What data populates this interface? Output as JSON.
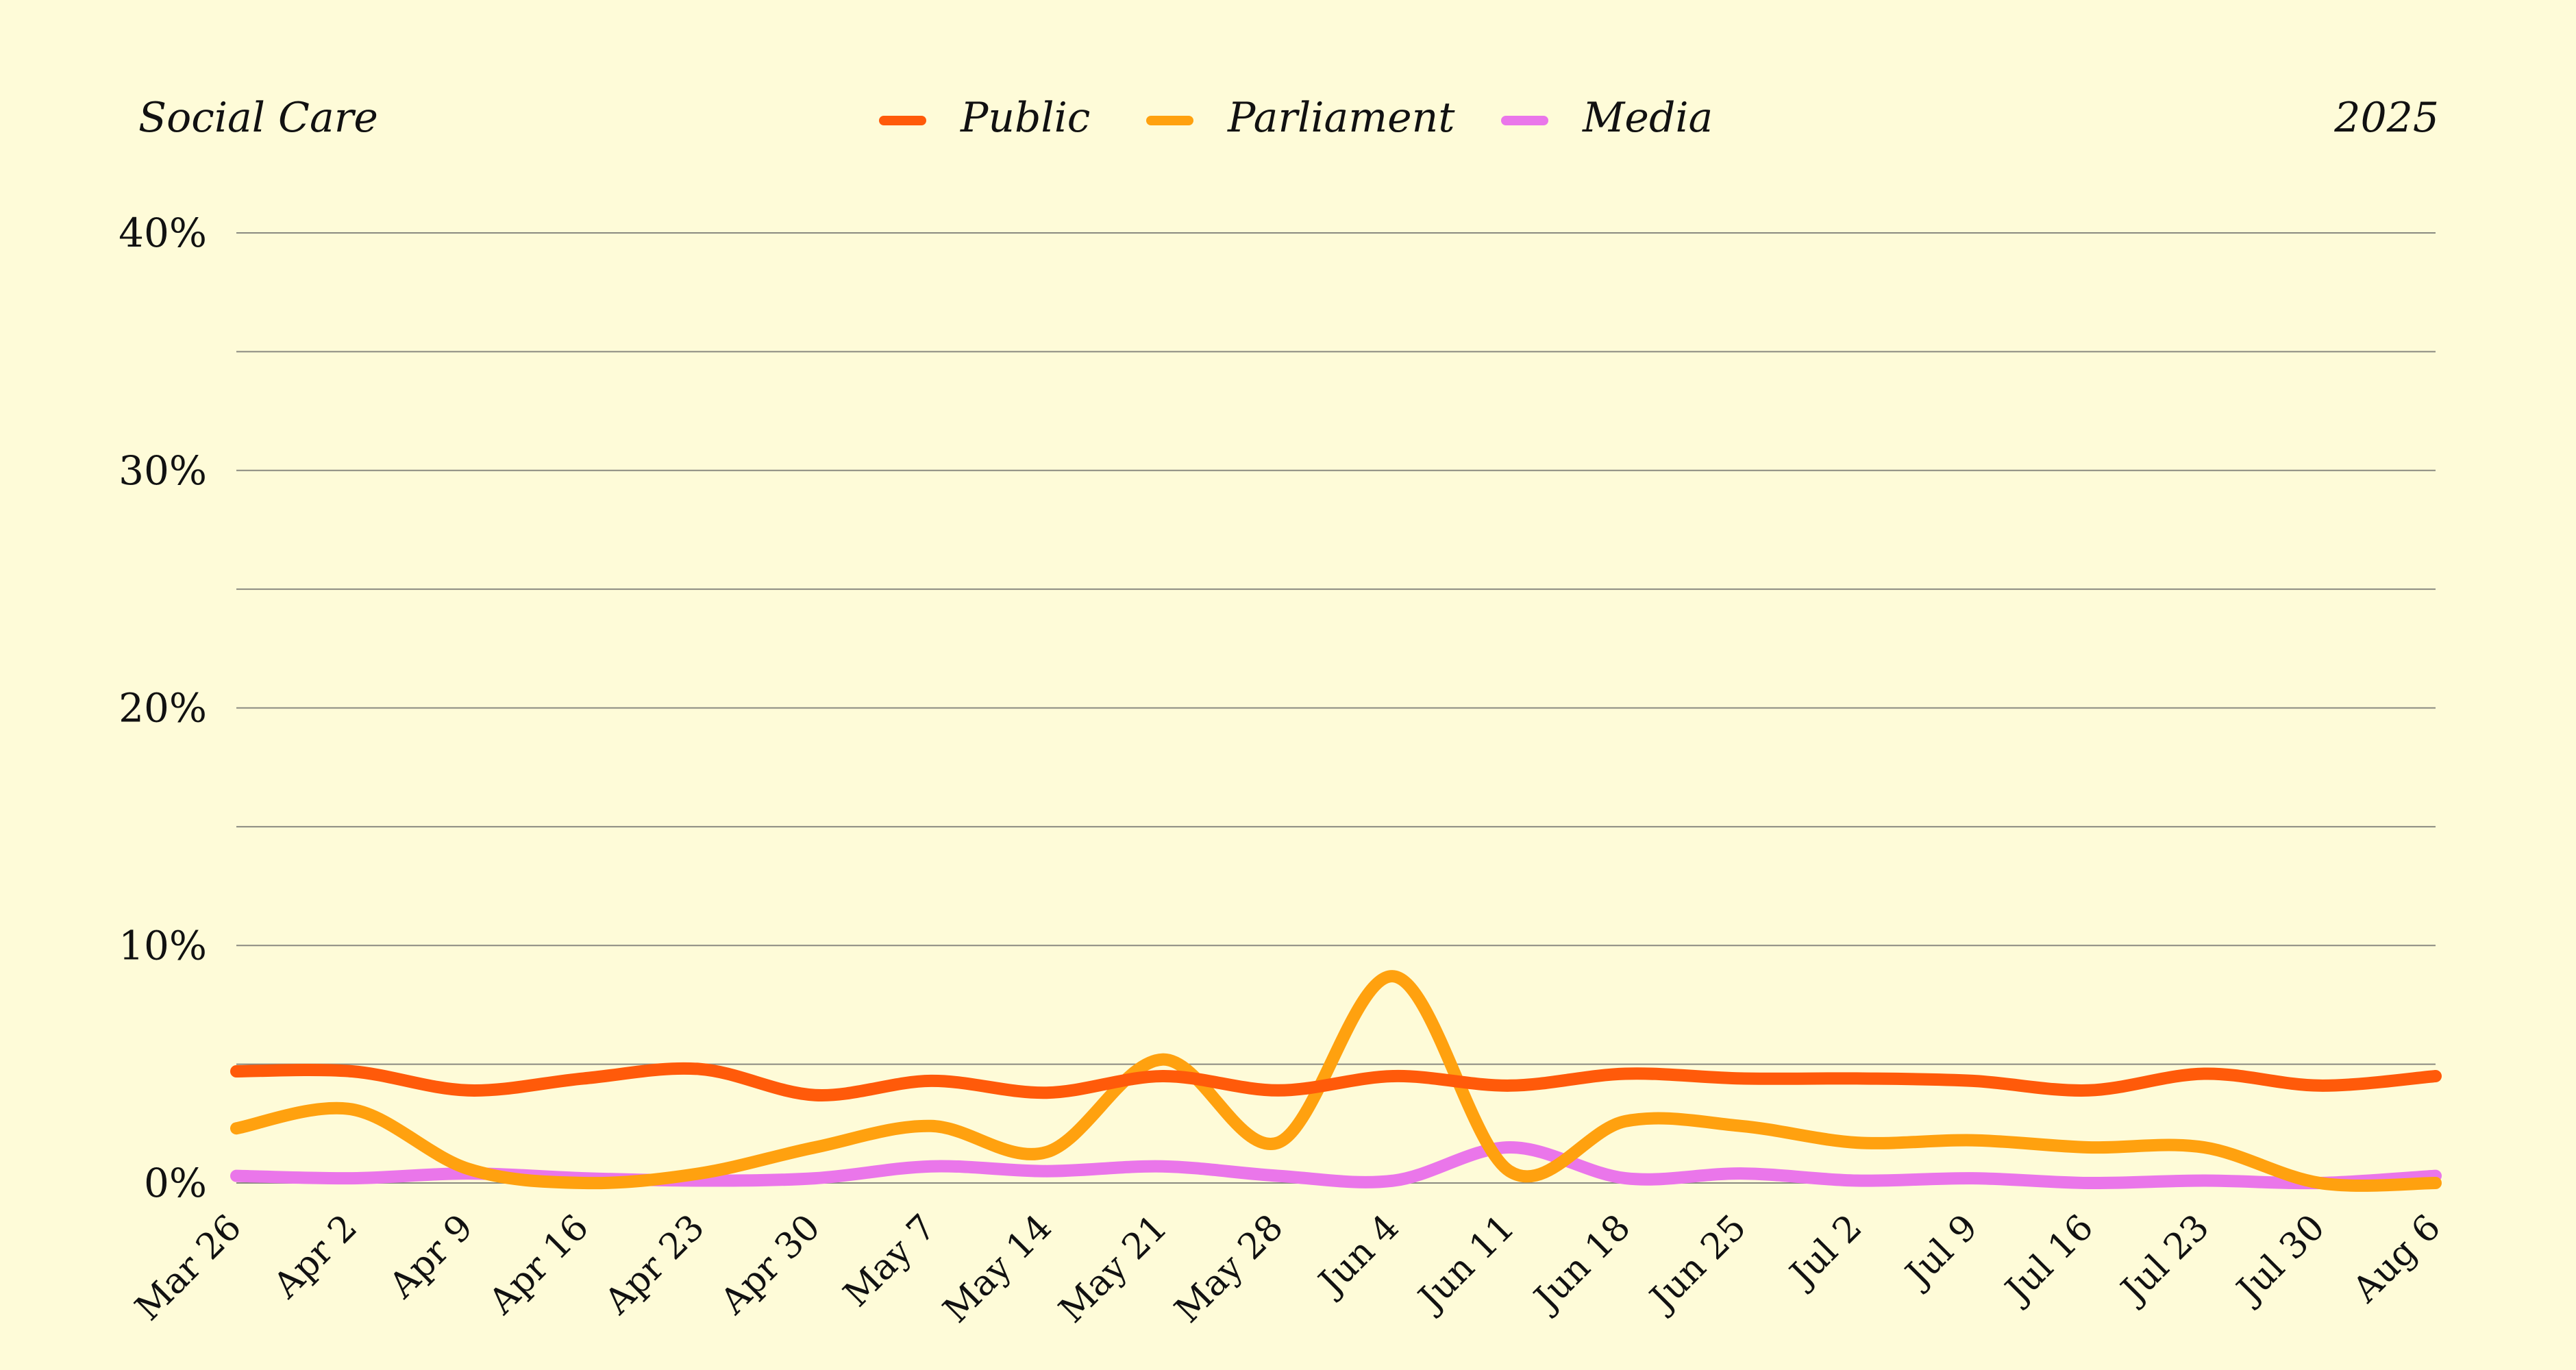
{
  "header": {
    "topic": "Social Care",
    "year": "2025"
  },
  "chart_data": {
    "type": "line",
    "y_unit": "%",
    "ylim": [
      0,
      40
    ],
    "y_ticks": [
      0,
      10,
      20,
      30,
      40
    ],
    "y_tick_labels": [
      "0%",
      "10%",
      "20%",
      "30%",
      "40%"
    ],
    "grid": true,
    "legend_position": "top-center",
    "categories": [
      "Mar 26",
      "Apr 2",
      "Apr 9",
      "Apr 16",
      "Apr 23",
      "Apr 30",
      "May 7",
      "May 14",
      "May 21",
      "May 28",
      "Jun 4",
      "Jun 11",
      "Jun 18",
      "Jun 25",
      "Jul 2",
      "Jul 9",
      "Jul 16",
      "Jul 23",
      "Jul 30",
      "Aug 6"
    ],
    "series": [
      {
        "name": "Public",
        "color": "#ff5a0a",
        "values": [
          4.7,
          4.7,
          3.9,
          4.4,
          4.8,
          3.7,
          4.3,
          3.8,
          4.5,
          3.9,
          4.5,
          4.1,
          4.6,
          4.4,
          4.4,
          4.3,
          3.9,
          4.6,
          4.1,
          4.5
        ]
      },
      {
        "name": "Parliament",
        "color": "#ffa10f",
        "values": [
          2.3,
          3.1,
          0.6,
          0.0,
          0.4,
          1.5,
          2.4,
          1.3,
          5.2,
          1.7,
          8.7,
          0.5,
          2.6,
          2.4,
          1.7,
          1.8,
          1.5,
          1.5,
          0.0,
          0.0
        ]
      },
      {
        "name": "Media",
        "color": "#ea76ea",
        "values": [
          0.3,
          0.2,
          0.4,
          0.2,
          0.1,
          0.2,
          0.7,
          0.5,
          0.7,
          0.3,
          0.1,
          1.5,
          0.2,
          0.4,
          0.1,
          0.2,
          0.0,
          0.1,
          0.0,
          0.3
        ]
      }
    ]
  }
}
